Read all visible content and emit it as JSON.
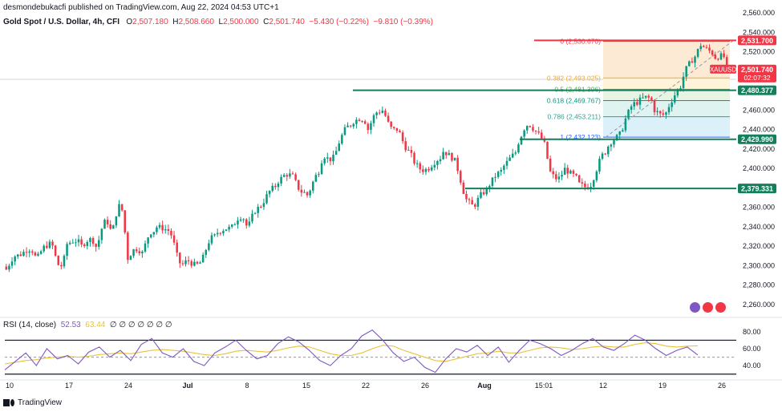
{
  "header": {
    "published": "desmondebukacfi published on TradingView.com, Aug 22, 2024 04:53 UTC+1"
  },
  "ohlc": {
    "symbol": "Gold Spot / U.S. Dollar, 4h, CFI",
    "open": "2,507.180",
    "high": "2,508.660",
    "low": "2,500.000",
    "close": "2,501.740",
    "change": "−5.430 (−0.22%)",
    "change2": "−9.810 (−0.39%)",
    "open_label": "O",
    "high_label": "H",
    "low_label": "L",
    "close_label": "C"
  },
  "rsi_header": {
    "label": "RSI (14, close)",
    "value": "52.53",
    "ma_value": "63.44",
    "empties": "∅ ∅ ∅ ∅ ∅ ∅ ∅"
  },
  "footer": {
    "brand": "TradingView"
  },
  "colors": {
    "up": "#089981",
    "down": "#f23645",
    "rsi": "#7e57c2",
    "rsi_ma": "#e8c33a",
    "level": "#137f5d",
    "fib_top": "#f23645"
  },
  "icons": [
    "lightning-icon",
    "flag-icon",
    "flag-icon"
  ],
  "chart_data": [
    {
      "type": "candlestick",
      "title": "Gold Spot / U.S. Dollar, 4h, CFI",
      "ylim": [
        2250,
        2565
      ],
      "y_ticks": [
        "2,560.000",
        "2,540.000",
        "2,520.000",
        "2,500.000",
        "2,480.000",
        "2,460.000",
        "2,440.000",
        "2,420.000",
        "2,400.000",
        "2,380.000",
        "2,360.000",
        "2,340.000",
        "2,320.000",
        "2,300.000",
        "2,280.000",
        "2,260.000"
      ],
      "x_ticks": [
        "10",
        "17",
        "24",
        "Jul",
        "8",
        "15",
        "22",
        "26",
        "Aug",
        "15:01",
        "12",
        "19",
        "26"
      ],
      "price_path": [
        [
          2296,
          2310
        ],
        [
          2312,
          2318
        ],
        [
          2306,
          2320
        ],
        [
          2324,
          2296
        ],
        [
          2322,
          2326
        ],
        [
          2320,
          2328
        ],
        [
          2318,
          2348
        ],
        [
          2332,
          2368
        ],
        [
          2306,
          2318
        ],
        [
          2312,
          2334
        ],
        [
          2340,
          2338
        ],
        [
          2330,
          2300
        ],
        [
          2306,
          2300
        ],
        [
          2306,
          2328
        ],
        [
          2334,
          2338
        ],
        [
          2340,
          2352
        ],
        [
          2338,
          2358
        ],
        [
          2364,
          2378
        ],
        [
          2386,
          2394
        ],
        [
          2392,
          2376
        ],
        [
          2372,
          2392
        ],
        [
          2414,
          2408
        ],
        [
          2424,
          2442
        ],
        [
          2448,
          2452
        ],
        [
          2440,
          2458
        ],
        [
          2460,
          2440
        ],
        [
          2440,
          2420
        ],
        [
          2408,
          2398
        ],
        [
          2400,
          2408
        ],
        [
          2418,
          2412
        ],
        [
          2396,
          2366
        ],
        [
          2360,
          2374
        ],
        [
          2382,
          2394
        ],
        [
          2402,
          2412
        ],
        [
          2428,
          2446
        ],
        [
          2440,
          2432
        ],
        [
          2398,
          2388
        ],
        [
          2400,
          2394
        ],
        [
          2384,
          2380
        ],
        [
          2392,
          2414
        ],
        [
          2426,
          2432
        ],
        [
          2448,
          2466
        ],
        [
          2470,
          2474
        ],
        [
          2460,
          2454
        ],
        [
          2466,
          2480
        ],
        [
          2500,
          2512
        ],
        [
          2528,
          2522
        ],
        [
          2514,
          2516
        ],
        [
          2504,
          2501.74
        ]
      ],
      "levels": [
        {
          "label": "2,531.700",
          "value": 2531.7,
          "color": "#f23645"
        },
        {
          "label": "2,480.377",
          "value": 2480.377,
          "color": "#137f5d"
        },
        {
          "label": "2,429.990",
          "value": 2429.99,
          "color": "#137f5d"
        },
        {
          "label": "2,379.331",
          "value": 2379.331,
          "color": "#137f5d"
        }
      ],
      "current_price": {
        "label": "2,501.740",
        "symbol": "XAUUSD",
        "countdown": "02:07:32"
      },
      "fibonacci": [
        {
          "ratio": "0",
          "label": "0 (2,530.670)",
          "value": 2530.67
        },
        {
          "ratio": "0.382",
          "label": "0.382 (2,493.025)",
          "value": 2493.025
        },
        {
          "ratio": "0.5",
          "label": "0.5 (2,481.396)",
          "value": 2481.396
        },
        {
          "ratio": "0.618",
          "label": "0.618 (2,469.767)",
          "value": 2469.767
        },
        {
          "ratio": "0.786",
          "label": "0.786 (2,453.211)",
          "value": 2453.211
        },
        {
          "ratio": "1",
          "label": "1 (2,432.123)",
          "value": 2432.123
        }
      ]
    },
    {
      "type": "line",
      "title": "RSI (14, close)",
      "ylim": [
        25,
        95
      ],
      "y_ticks": [
        "80.00",
        "60.00",
        "40.00"
      ],
      "upper_band": 70,
      "lower_band": 30,
      "mid_band": 50,
      "series": [
        {
          "name": "RSI",
          "values": [
            35,
            45,
            55,
            40,
            60,
            48,
            52,
            42,
            56,
            62,
            50,
            58,
            46,
            65,
            72,
            55,
            50,
            60,
            45,
            40,
            55,
            62,
            70,
            58,
            48,
            52,
            66,
            74,
            68,
            58,
            46,
            40,
            52,
            60,
            75,
            82,
            70,
            55,
            45,
            50,
            38,
            32,
            48,
            60,
            56,
            64,
            52,
            62,
            44,
            58,
            70,
            66,
            60,
            52,
            58,
            66,
            72,
            62,
            58,
            66,
            76,
            70,
            60,
            52,
            58,
            62,
            52.53
          ]
        },
        {
          "name": "MA",
          "values": [
            42,
            44,
            46,
            47,
            49,
            50,
            51,
            50,
            51,
            53,
            54,
            55,
            54,
            56,
            58,
            59,
            58,
            57,
            55,
            53,
            52,
            54,
            57,
            58,
            57,
            56,
            58,
            61,
            63,
            62,
            58,
            54,
            52,
            52,
            55,
            60,
            64,
            63,
            58,
            54,
            50,
            46,
            45,
            48,
            51,
            54,
            55,
            57,
            55,
            55,
            58,
            61,
            62,
            61,
            59,
            60,
            62,
            63,
            62,
            62,
            65,
            67,
            66,
            63,
            62,
            63,
            63.44
          ]
        }
      ]
    }
  ]
}
